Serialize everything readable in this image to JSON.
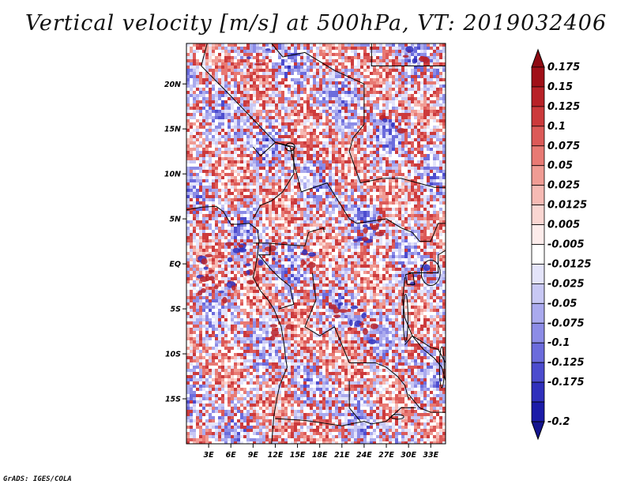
{
  "title": "Vertical velocity [m/s] at 500hPa, VT: 2019032406",
  "footer": "GrADS: IGES/COLA",
  "map": {
    "variable": "Vertical velocity",
    "units": "m/s",
    "level": "500hPa",
    "valid_time": "2019032406",
    "lat_range": [
      -20,
      24.5
    ],
    "lon_range": [
      0,
      35
    ],
    "lat_ticks": [
      {
        "value": 20,
        "label": "20N"
      },
      {
        "value": 15,
        "label": "15N"
      },
      {
        "value": 10,
        "label": "10N"
      },
      {
        "value": 5,
        "label": "5N"
      },
      {
        "value": 0,
        "label": "EQ"
      },
      {
        "value": -5,
        "label": "5S"
      },
      {
        "value": -10,
        "label": "10S"
      },
      {
        "value": -15,
        "label": "15S"
      }
    ],
    "lon_ticks": [
      {
        "value": 3,
        "label": "3E"
      },
      {
        "value": 6,
        "label": "6E"
      },
      {
        "value": 9,
        "label": "9E"
      },
      {
        "value": 12,
        "label": "12E"
      },
      {
        "value": 15,
        "label": "15E"
      },
      {
        "value": 18,
        "label": "18E"
      },
      {
        "value": 21,
        "label": "21E"
      },
      {
        "value": 24,
        "label": "24E"
      },
      {
        "value": 27,
        "label": "27E"
      },
      {
        "value": 30,
        "label": "30E"
      },
      {
        "value": 33,
        "label": "33E"
      }
    ]
  },
  "colorbar": {
    "levels": [
      {
        "label": "0.175",
        "color": "#a01018"
      },
      {
        "label": "0.15",
        "color": "#b82228"
      },
      {
        "label": "0.125",
        "color": "#cc3a3c"
      },
      {
        "label": "0.1",
        "color": "#dc5a58"
      },
      {
        "label": "0.075",
        "color": "#e87a74"
      },
      {
        "label": "0.05",
        "color": "#f09c94"
      },
      {
        "label": "0.025",
        "color": "#f6bab4"
      },
      {
        "label": "0.0125",
        "color": "#fad6d2"
      },
      {
        "label": "0.005",
        "color": "#fdeceb"
      },
      {
        "label": "-0.005",
        "color": "#ffffff"
      },
      {
        "label": "-0.0125",
        "color": "#e4e4fa"
      },
      {
        "label": "-0.025",
        "color": "#c8c8f4"
      },
      {
        "label": "-0.05",
        "color": "#aaaaee"
      },
      {
        "label": "-0.075",
        "color": "#8c8ce6"
      },
      {
        "label": "-0.1",
        "color": "#6c6cdc"
      },
      {
        "label": "-0.125",
        "color": "#4c4cce"
      },
      {
        "label": "-0.175",
        "color": "#3030bc"
      },
      {
        "label": "-0.2",
        "color": "#1c1ca8"
      }
    ],
    "top_cap_color": "#8e0a12",
    "bottom_cap_color": "#14148e"
  }
}
